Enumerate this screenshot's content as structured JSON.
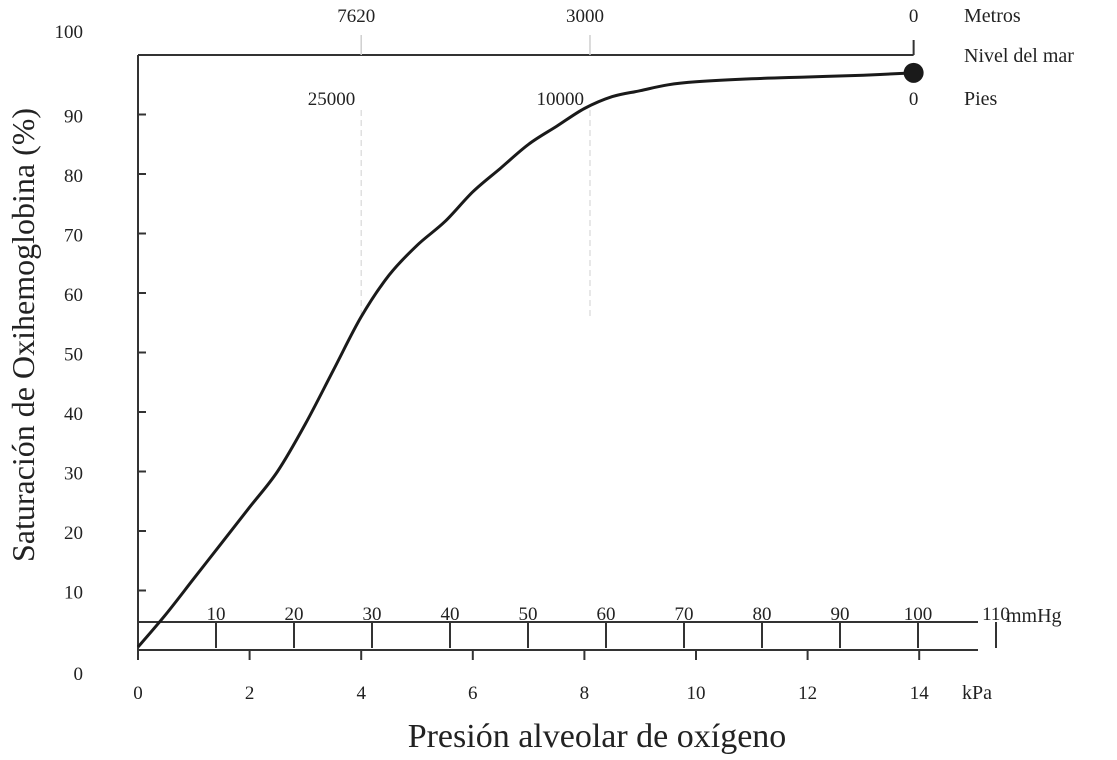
{
  "chart_data": {
    "type": "line",
    "xlabel": "Presión alveolar de oxígeno",
    "ylabel": "Saturación de Oxihemoglobina (%)",
    "x_unit": "kPa",
    "xlim": [
      0,
      14.7
    ],
    "ylim": [
      0,
      100
    ],
    "grid": false,
    "y_ticks": [
      0,
      10,
      20,
      30,
      40,
      50,
      60,
      70,
      80,
      90,
      100
    ],
    "x_ticks_kpa": [
      0,
      2,
      4,
      6,
      8,
      10,
      12,
      14
    ],
    "mmhg_axis": {
      "unit": "mmHg",
      "ticks": [
        10,
        20,
        30,
        40,
        50,
        60,
        70,
        80,
        90,
        100,
        110
      ]
    },
    "altitude_axis": {
      "meters_unit": "Metros",
      "feet_unit": "Pies",
      "sea_level_label": "Nivel del mar",
      "meters": [
        {
          "label": "7620",
          "kpa": 4.0
        },
        {
          "label": "3000",
          "kpa": 8.1
        },
        {
          "label": "0",
          "kpa": 13.9
        }
      ],
      "feet": [
        {
          "label": "25000",
          "kpa": 4.0
        },
        {
          "label": "10000",
          "kpa": 8.1
        },
        {
          "label": "0",
          "kpa": 13.9
        }
      ]
    },
    "series": [
      {
        "x": [
          0,
          0.5,
          1,
          1.5,
          2,
          2.5,
          3,
          3.5,
          4,
          4.5,
          5,
          5.5,
          6,
          6.5,
          7,
          7.5,
          8,
          8.5,
          9,
          9.5,
          10,
          11,
          12,
          13,
          13.9
        ],
        "y": [
          0.5,
          6,
          12,
          18,
          24,
          30,
          38,
          47,
          56,
          63,
          68,
          72,
          77,
          81,
          85,
          88,
          91,
          93,
          94,
          95,
          95.5,
          96,
          96.3,
          96.6,
          97
        ]
      }
    ],
    "endpoint": {
      "x": 13.9,
      "y": 97
    }
  }
}
